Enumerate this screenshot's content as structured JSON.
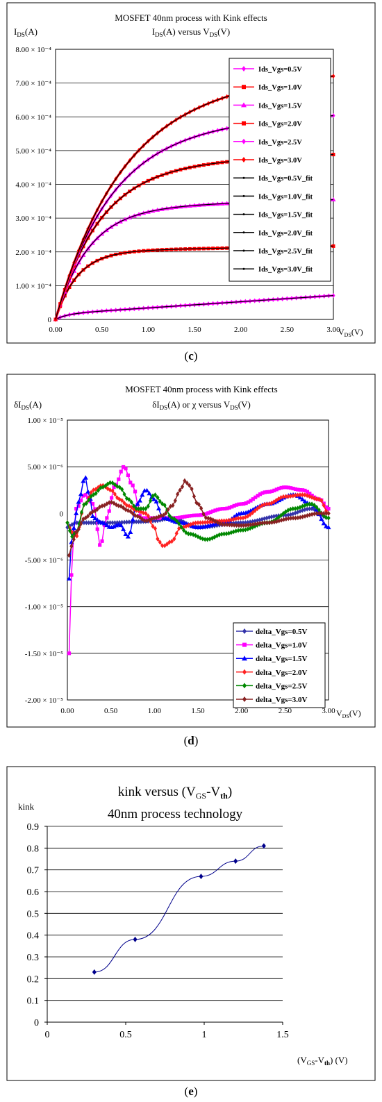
{
  "chart_data": [
    {
      "type": "line",
      "title": "MOSFET 40nm process with Kink effects",
      "subtitle_pre": "I",
      "subtitle_sub": "DS",
      "subtitle_mid": "(A) versus V",
      "subtitle_sub2": "DS",
      "subtitle_post": "(V)",
      "ylabel_main": "I",
      "ylabel_sub": "DS",
      "ylabel_post": "(A)",
      "xlabel_main": "V",
      "xlabel_sub": "DS",
      "xlabel_post": "(V)",
      "yticks": [
        {
          "v": 0,
          "label": "0"
        },
        {
          "v": 1,
          "label": "1.00 × 10⁻⁴"
        },
        {
          "v": 2,
          "label": "2.00 × 10⁻⁴"
        },
        {
          "v": 3,
          "label": "3.00 × 10⁻⁴"
        },
        {
          "v": 4,
          "label": "4.00 × 10⁻⁴"
        },
        {
          "v": 5,
          "label": "5.00 × 10⁻⁴"
        },
        {
          "v": 6,
          "label": "6.00 × 10⁻⁴"
        },
        {
          "v": 7,
          "label": "7.00 × 10⁻⁴"
        },
        {
          "v": 8,
          "label": "8.00 × 10⁻⁴"
        }
      ],
      "xticks": [
        "0.00",
        "0.50",
        "1.00",
        "1.50",
        "2.00",
        "2.50",
        "3.00"
      ],
      "xlim": [
        0,
        3.0
      ],
      "ylim": [
        0,
        8.0
      ],
      "y_unit_scale": "× 10⁻⁴ A",
      "legend_position": "top-right",
      "series_sat": [
        {
          "vgs": 0.5,
          "sat": 0.55
        },
        {
          "vgs": 1.0,
          "sat": 2.02
        },
        {
          "vgs": 1.5,
          "sat": 3.3
        },
        {
          "vgs": 2.0,
          "sat": 4.55
        },
        {
          "vgs": 2.5,
          "sat": 5.65
        },
        {
          "vgs": 3.0,
          "sat": 6.8
        }
      ],
      "legend": [
        {
          "label": "Ids_Vgs=0.5V",
          "color": "#ff00ff",
          "marker": "diamond"
        },
        {
          "label": "Ids_Vgs=1.0V",
          "color": "#ff0000",
          "marker": "square"
        },
        {
          "label": "Ids_Vgs=1.5V",
          "color": "#ff00ff",
          "marker": "triangle"
        },
        {
          "label": "Ids_Vgs=2.0V",
          "color": "#ff0000",
          "marker": "square"
        },
        {
          "label": "Ids_Vgs=2.5V",
          "color": "#ff00ff",
          "marker": "diamond"
        },
        {
          "label": "Ids_Vgs=3.0V",
          "color": "#ff0000",
          "marker": "diamond"
        },
        {
          "label": "Ids_Vgs=0.5V_fit",
          "color": "#000000",
          "marker": "dot"
        },
        {
          "label": "Ids_Vgs=1.0V_fit",
          "color": "#000000",
          "marker": "dot"
        },
        {
          "label": "Ids_Vgs=1.5V_fit",
          "color": "#000000",
          "marker": "dot"
        },
        {
          "label": "Ids_Vgs=2.0V_fit",
          "color": "#000000",
          "marker": "dot"
        },
        {
          "label": "Ids_Vgs=2.5V_fit",
          "color": "#000000",
          "marker": "dot"
        },
        {
          "label": "Ids_Vgs=3.0V_fit",
          "color": "#000000",
          "marker": "dot"
        }
      ],
      "caption": "c"
    },
    {
      "type": "line",
      "title": "MOSFET 40nm process with Kink effects",
      "subtitle_pre": "δI",
      "subtitle_sub": "DS",
      "subtitle_mid": "(A) or χ versus V",
      "subtitle_sub2": "DS",
      "subtitle_post": "(V)",
      "ylabel_main": "δI",
      "ylabel_sub": "DS",
      "ylabel_post": "(A)",
      "xlabel_main": "V",
      "xlabel_sub": "DS",
      "xlabel_post": "(V)",
      "yticks": [
        {
          "v": 10,
          "label": "1.00 × 10⁻⁵"
        },
        {
          "v": 5,
          "label": "5.00 × 10⁻⁶"
        },
        {
          "v": 0,
          "label": "0"
        },
        {
          "v": -5,
          "label": "-5.00 × 10⁻⁶"
        },
        {
          "v": -10,
          "label": "-1.00 × 10⁻⁵"
        },
        {
          "v": -15,
          "label": "-1.50 × 10⁻⁵"
        },
        {
          "v": -20,
          "label": "-2.00 × 10⁻⁵"
        }
      ],
      "xticks": [
        "0.00",
        "0.50",
        "1.00",
        "1.50",
        "2.00",
        "2.50",
        "3.00"
      ],
      "xlim": [
        0,
        3.0
      ],
      "ylim": [
        -20,
        10
      ],
      "y_unit_scale": "× 10⁻⁶ A",
      "legend_position": "bottom-right",
      "series": [
        {
          "name": "delta_Vgs=0.5V",
          "color": "#3333aa",
          "marker": "diamond",
          "x": [
            0,
            0.05,
            0.1,
            0.2,
            0.3,
            0.5,
            0.8,
            1.0,
            1.2,
            1.5,
            2.0,
            2.5,
            2.8,
            3.0
          ],
          "y": [
            -1.5,
            -1.2,
            -1.0,
            -1.0,
            -1.0,
            -1.0,
            -0.9,
            -0.8,
            -0.5,
            -1.5,
            -1.0,
            -0.2,
            0.5,
            -0.5
          ]
        },
        {
          "name": "delta_Vgs=1.0V",
          "color": "#ff00ff",
          "marker": "square",
          "x": [
            0.02,
            0.04,
            0.06,
            0.1,
            0.2,
            0.3,
            0.38,
            0.45,
            0.55,
            0.65,
            0.75,
            0.85,
            1.0,
            1.2,
            1.5,
            1.8,
            2.0,
            2.3,
            2.5,
            2.7,
            2.9,
            3.0
          ],
          "y": [
            -15,
            -8,
            -3,
            0.5,
            2.0,
            1.0,
            -3.5,
            -0.5,
            3.0,
            5.0,
            3.0,
            -0.5,
            -0.5,
            -0.5,
            -0.2,
            0.5,
            1.0,
            2.3,
            2.8,
            2.5,
            1.5,
            0.5
          ]
        },
        {
          "name": "delta_Vgs=1.5V",
          "color": "#0000ff",
          "marker": "triangle",
          "x": [
            0.02,
            0.05,
            0.1,
            0.15,
            0.2,
            0.25,
            0.3,
            0.4,
            0.5,
            0.6,
            0.7,
            0.8,
            0.9,
            1.0,
            1.1,
            1.3,
            1.5,
            1.8,
            2.0,
            2.3,
            2.6,
            2.8,
            3.0
          ],
          "y": [
            -7,
            -3,
            0,
            2,
            4,
            2,
            -0.5,
            -1,
            -1.5,
            -1.2,
            -2.5,
            1.0,
            2.5,
            1.5,
            -0.5,
            -1.0,
            -1.5,
            -1.0,
            0,
            1.0,
            2.0,
            1.0,
            -1.5
          ]
        },
        {
          "name": "delta_Vgs=2.0V",
          "color": "#ff2222",
          "marker": "diamond",
          "x": [
            0,
            0.05,
            0.1,
            0.2,
            0.3,
            0.4,
            0.5,
            0.6,
            0.7,
            0.8,
            0.9,
            1.0,
            1.05,
            1.1,
            1.2,
            1.3,
            1.5,
            1.8,
            2.0,
            2.3,
            2.5,
            2.7,
            2.9,
            3.0
          ],
          "y": [
            -1,
            -2,
            -2.5,
            1.0,
            2.5,
            3.0,
            2.5,
            1.5,
            0.8,
            0.3,
            0,
            -1.5,
            -3,
            -3.5,
            -3,
            -1.5,
            -1.0,
            -0.8,
            -0.5,
            1.0,
            1.8,
            2.0,
            1.5,
            0
          ]
        },
        {
          "name": "delta_Vgs=2.5V",
          "color": "#008800",
          "marker": "diamond",
          "x": [
            0,
            0.05,
            0.1,
            0.2,
            0.3,
            0.4,
            0.5,
            0.6,
            0.7,
            0.8,
            0.9,
            1.0,
            1.1,
            1.2,
            1.4,
            1.6,
            1.8,
            2.0,
            2.3,
            2.6,
            2.8,
            3.0
          ],
          "y": [
            -1,
            -2.5,
            -2,
            1,
            2,
            2.8,
            3.3,
            2.8,
            1.5,
            0.5,
            0.5,
            2.0,
            1.0,
            -0.5,
            -2.2,
            -2.8,
            -2.2,
            -1.8,
            -1.0,
            0.5,
            1.0,
            -0.5
          ]
        },
        {
          "name": "delta_Vgs=3.0V",
          "color": "#882222",
          "marker": "diamond",
          "x": [
            0.02,
            0.05,
            0.1,
            0.2,
            0.3,
            0.4,
            0.5,
            0.6,
            0.7,
            0.8,
            0.9,
            1.0,
            1.1,
            1.2,
            1.3,
            1.35,
            1.4,
            1.5,
            1.6,
            1.8,
            2.0,
            2.3,
            2.6,
            2.9,
            3.0
          ],
          "y": [
            -4.5,
            -3.5,
            -2,
            -0.5,
            0.2,
            0.8,
            1.2,
            0.8,
            0.3,
            -0.3,
            -0.8,
            -0.5,
            -0.2,
            0.8,
            2.5,
            3.5,
            3.0,
            1.0,
            -0.5,
            -1.2,
            -1.3,
            -1.0,
            -0.5,
            0,
            0
          ]
        }
      ],
      "caption": "d"
    },
    {
      "type": "line",
      "title_pre": "kink versus (V",
      "title_sub": "GS",
      "title_mid": "-V",
      "title_sub2": "th",
      "title_post": ")",
      "subtitle": "40nm process technology",
      "ylabel": "kink",
      "xlabel_pre": "(V",
      "xlabel_sub": "GS",
      "xlabel_mid": "-V",
      "xlabel_sub2": "th",
      "xlabel_post": ") (V)",
      "yticks": [
        "0",
        "0.1",
        "0.2",
        "0.3",
        "0.4",
        "0.5",
        "0.6",
        "0.7",
        "0.8",
        "0.9"
      ],
      "xticks": [
        "0",
        "0.5",
        "1",
        "1.5"
      ],
      "xlim": [
        0,
        1.5
      ],
      "ylim": [
        0,
        0.9
      ],
      "series": [
        {
          "name": "",
          "color": "#00008b",
          "marker": "diamond",
          "x": [
            0.3,
            0.56,
            0.98,
            1.2,
            1.38
          ],
          "y": [
            0.23,
            0.38,
            0.67,
            0.74,
            0.81
          ]
        }
      ],
      "caption": "e"
    }
  ]
}
